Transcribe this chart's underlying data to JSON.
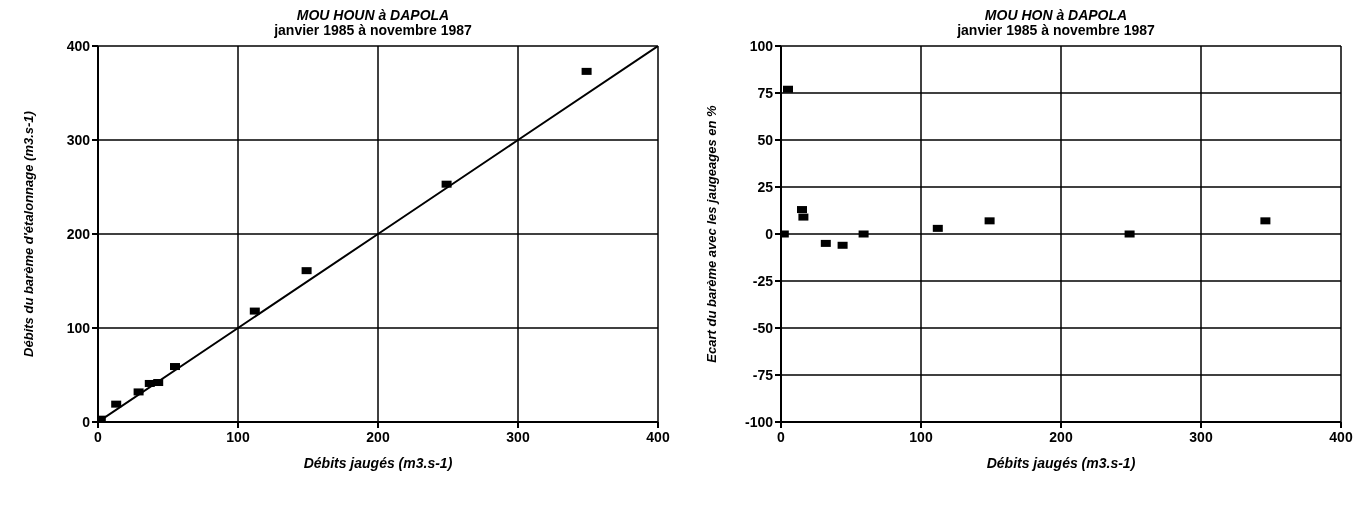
{
  "chart_data": [
    {
      "type": "scatter",
      "title": "MOU HOUN à DAPOLA",
      "subtitle": "janvier 1985 à novembre 1987",
      "xlabel": "Débits jaugés (m3.s-1)",
      "ylabel": "Débits du barème d'étalonnage (m3.s-1)",
      "xlim": [
        0,
        400
      ],
      "xticks": [
        0,
        100,
        200,
        300,
        400
      ],
      "ylim": [
        0,
        400
      ],
      "yticks": [
        0,
        100,
        200,
        300,
        400
      ],
      "grid": true,
      "series": [
        {
          "color": "#000000",
          "marker": "square",
          "x": [
            2,
            13,
            29,
            37,
            43,
            55,
            112,
            149,
            249,
            349
          ],
          "values": [
            3,
            19,
            32,
            41,
            42,
            59,
            118,
            161,
            253,
            373
          ]
        },
        {
          "type": "line",
          "color": "#000000",
          "x": [
            0,
            100,
            200,
            300,
            400
          ],
          "values": [
            0,
            100,
            200,
            300,
            400
          ]
        }
      ]
    },
    {
      "type": "scatter",
      "title": "MOU HON à DAPOLA",
      "subtitle": "janvier 1985 à novembre 1987",
      "xlabel": "Débits jaugés (m3.s-1)",
      "ylabel": "Ecart du barème avec les jaugeages en %",
      "xlim": [
        0,
        400
      ],
      "xticks": [
        0,
        100,
        200,
        300,
        400
      ],
      "ylim": [
        -100,
        100
      ],
      "yticks": [
        -100,
        -75,
        -50,
        -25,
        0,
        25,
        50,
        75,
        100
      ],
      "grid": true,
      "series": [
        {
          "color": "#000000",
          "marker": "square",
          "x": [
            2,
            5,
            15,
            16,
            32,
            44,
            59,
            112,
            149,
            249,
            346
          ],
          "values": [
            0,
            77,
            13,
            9,
            -5,
            -6,
            0,
            3,
            7,
            0,
            7
          ]
        }
      ]
    }
  ]
}
